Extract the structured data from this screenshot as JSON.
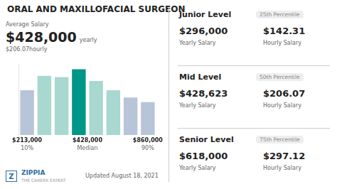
{
  "chart_data": {
    "type": "bar",
    "title": "ORAL AND MAXILLOFACIAL SURGEON",
    "categories": [
      null,
      null,
      null,
      null,
      null,
      null,
      null,
      null
    ],
    "values": [
      0.68,
      0.9,
      0.88,
      1.0,
      0.82,
      0.68,
      0.57,
      0.5
    ],
    "colors": [
      "#b8c4d8",
      "#a8d8d0",
      "#a8d8d0",
      "#009688",
      "#a8d8d0",
      "#a8d8d0",
      "#b8c4d8",
      "#b8c4d8"
    ],
    "ylim": [
      0,
      1.08
    ],
    "grid": false,
    "tick_labels": false,
    "annotations": {
      "summary": [
        "Average Salary",
        "$428,000",
        "yearly",
        "$206.07hourly"
      ],
      "x_labels": [
        [
          "$213,000",
          "10%"
        ],
        [
          "$428,000",
          "Median"
        ],
        [
          "$860,000",
          "90%"
        ]
      ],
      "footer": [
        "Z",
        "ZIPPIA",
        "THE CAREER EXPERT",
        "Updated August 18, 2021"
      ],
      "levels": [
        [
          "Junior Level",
          "25th Percentile",
          "$296,000",
          "$142.31",
          "Yearly Salary",
          "Hourly Salary"
        ],
        [
          "Mid Level",
          "50th Percentile",
          "$428,623",
          "$206.07",
          "Yearly Salary",
          "Hourly Salary"
        ],
        [
          "Senior Level",
          "75th Percentile",
          "$618,000",
          "$297.12",
          "Yearly Salary",
          "Hourly Salary"
        ]
      ]
    }
  }
}
